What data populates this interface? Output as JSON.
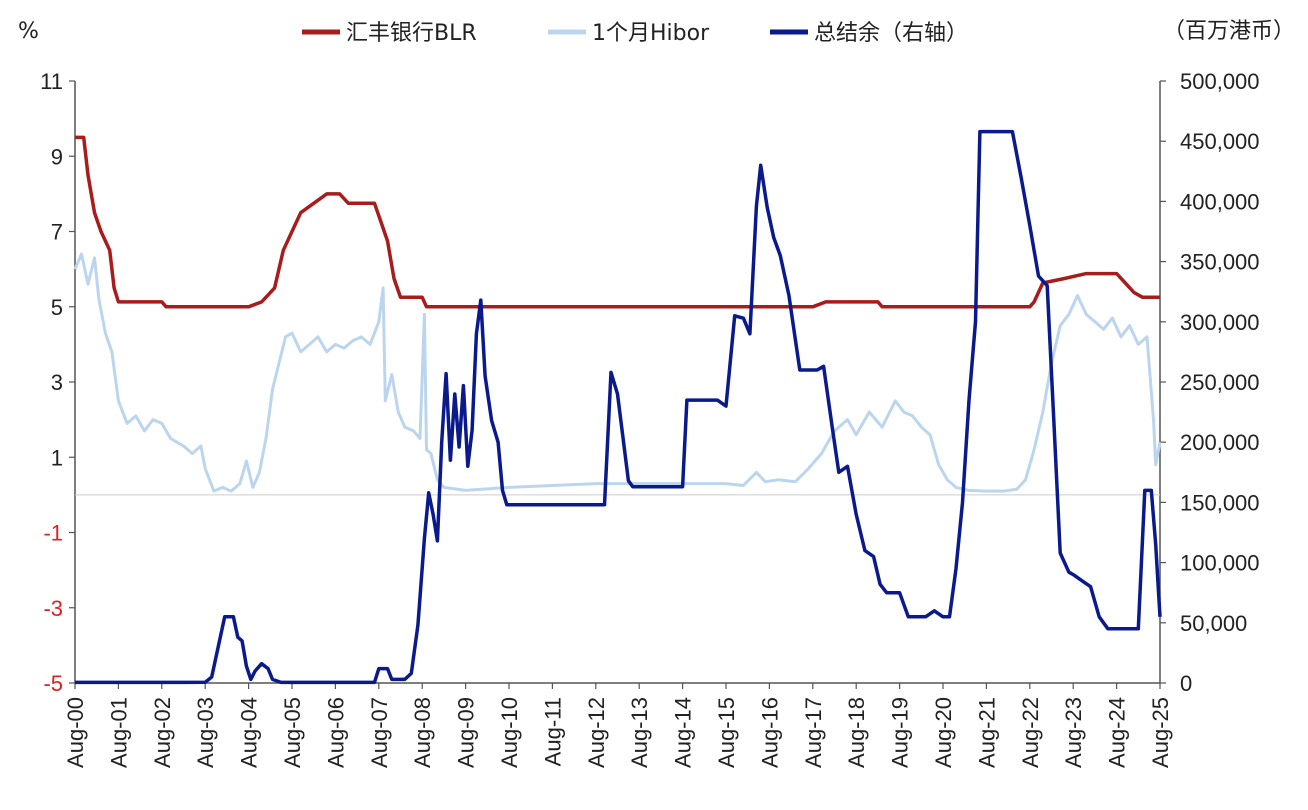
{
  "chart_data": {
    "type": "line",
    "left_unit": "%",
    "right_unit": "（百万港币）",
    "legend": [
      {
        "name": "汇丰银行BLR",
        "color": "#a81c1c"
      },
      {
        "name": "1个月Hibor",
        "color": "#bcd5ee"
      },
      {
        "name": "总结余（右轴）",
        "color": "#0a1a8c"
      }
    ],
    "x_ticks": [
      "Aug-00",
      "Aug-01",
      "Aug-02",
      "Aug-03",
      "Aug-04",
      "Aug-05",
      "Aug-06",
      "Aug-07",
      "Aug-08",
      "Aug-09",
      "Aug-10",
      "Aug-11",
      "Aug-12",
      "Aug-13",
      "Aug-14",
      "Aug-15",
      "Aug-16",
      "Aug-17",
      "Aug-18",
      "Aug-19",
      "Aug-20",
      "Aug-21",
      "Aug-22",
      "Aug-23",
      "Aug-24",
      "Aug-25"
    ],
    "y_left": {
      "ticks": [
        "11",
        "9",
        "7",
        "5",
        "3",
        "1",
        "-1",
        "-3",
        "-5"
      ],
      "values": [
        11,
        9,
        7,
        5,
        3,
        1,
        -1,
        -3,
        -5
      ],
      "min": -5,
      "max": 11,
      "negative_color": "#e02020"
    },
    "y_right": {
      "ticks": [
        "500,000",
        "450,000",
        "400,000",
        "350,000",
        "300,000",
        "250,000",
        "200,000",
        "150,000",
        "100,000",
        "50,000",
        "0"
      ],
      "values": [
        500000,
        450000,
        400000,
        350000,
        300000,
        250000,
        200000,
        150000,
        100000,
        50000,
        0
      ],
      "min": 0,
      "max": 500000
    },
    "series": [
      {
        "name": "汇丰银行BLR",
        "axis": "left",
        "color": "#a81c1c",
        "points": [
          [
            0,
            9.5
          ],
          [
            0.2,
            9.5
          ],
          [
            0.3,
            8.5
          ],
          [
            0.45,
            7.5
          ],
          [
            0.6,
            7.0
          ],
          [
            0.8,
            6.5
          ],
          [
            0.9,
            5.5
          ],
          [
            1.0,
            5.13
          ],
          [
            2.0,
            5.13
          ],
          [
            2.1,
            5.0
          ],
          [
            3.0,
            5.0
          ],
          [
            3.5,
            5.0
          ],
          [
            4.0,
            5.0
          ],
          [
            4.3,
            5.13
          ],
          [
            4.6,
            5.5
          ],
          [
            4.8,
            6.5
          ],
          [
            5.0,
            7.0
          ],
          [
            5.2,
            7.5
          ],
          [
            5.5,
            7.75
          ],
          [
            5.8,
            8.0
          ],
          [
            6.1,
            8.0
          ],
          [
            6.3,
            7.75
          ],
          [
            6.9,
            7.75
          ],
          [
            7.05,
            7.25
          ],
          [
            7.2,
            6.75
          ],
          [
            7.35,
            5.75
          ],
          [
            7.5,
            5.25
          ],
          [
            8.0,
            5.25
          ],
          [
            8.1,
            5.0
          ],
          [
            9.0,
            5.0
          ],
          [
            17.0,
            5.0
          ],
          [
            17.3,
            5.13
          ],
          [
            18.5,
            5.13
          ],
          [
            18.6,
            5.0
          ],
          [
            22.0,
            5.0
          ],
          [
            22.1,
            5.13
          ],
          [
            22.3,
            5.63
          ],
          [
            22.8,
            5.75
          ],
          [
            23.3,
            5.88
          ],
          [
            24.0,
            5.88
          ],
          [
            24.2,
            5.63
          ],
          [
            24.4,
            5.38
          ],
          [
            24.6,
            5.25
          ],
          [
            25.0,
            5.25
          ]
        ]
      },
      {
        "name": "1个月Hibor",
        "axis": "left",
        "color": "#bcd5ee",
        "points": [
          [
            0,
            6.0
          ],
          [
            0.15,
            6.4
          ],
          [
            0.3,
            5.6
          ],
          [
            0.45,
            6.3
          ],
          [
            0.55,
            5.2
          ],
          [
            0.7,
            4.3
          ],
          [
            0.85,
            3.8
          ],
          [
            1.0,
            2.5
          ],
          [
            1.2,
            1.9
          ],
          [
            1.4,
            2.1
          ],
          [
            1.6,
            1.7
          ],
          [
            1.8,
            2.0
          ],
          [
            2.0,
            1.9
          ],
          [
            2.2,
            1.5
          ],
          [
            2.5,
            1.3
          ],
          [
            2.7,
            1.1
          ],
          [
            2.9,
            1.3
          ],
          [
            3.0,
            0.7
          ],
          [
            3.2,
            0.1
          ],
          [
            3.4,
            0.2
          ],
          [
            3.6,
            0.1
          ],
          [
            3.8,
            0.3
          ],
          [
            3.95,
            0.9
          ],
          [
            4.1,
            0.2
          ],
          [
            4.25,
            0.6
          ],
          [
            4.4,
            1.5
          ],
          [
            4.55,
            2.8
          ],
          [
            4.7,
            3.5
          ],
          [
            4.85,
            4.2
          ],
          [
            5.0,
            4.3
          ],
          [
            5.2,
            3.8
          ],
          [
            5.4,
            4.0
          ],
          [
            5.6,
            4.2
          ],
          [
            5.8,
            3.8
          ],
          [
            6.0,
            4.0
          ],
          [
            6.2,
            3.9
          ],
          [
            6.4,
            4.1
          ],
          [
            6.6,
            4.2
          ],
          [
            6.8,
            4.0
          ],
          [
            7.0,
            4.6
          ],
          [
            7.1,
            5.5
          ],
          [
            7.15,
            2.5
          ],
          [
            7.3,
            3.2
          ],
          [
            7.45,
            2.2
          ],
          [
            7.6,
            1.8
          ],
          [
            7.8,
            1.7
          ],
          [
            7.95,
            1.5
          ],
          [
            8.05,
            4.8
          ],
          [
            8.1,
            1.2
          ],
          [
            8.2,
            1.1
          ],
          [
            8.35,
            0.4
          ],
          [
            8.5,
            0.2
          ],
          [
            9.0,
            0.12
          ],
          [
            10.0,
            0.2
          ],
          [
            11.0,
            0.25
          ],
          [
            12.0,
            0.3
          ],
          [
            13.0,
            0.3
          ],
          [
            14.0,
            0.3
          ],
          [
            15.0,
            0.3
          ],
          [
            15.4,
            0.25
          ],
          [
            15.7,
            0.6
          ],
          [
            15.9,
            0.35
          ],
          [
            16.2,
            0.4
          ],
          [
            16.6,
            0.35
          ],
          [
            16.9,
            0.7
          ],
          [
            17.2,
            1.1
          ],
          [
            17.5,
            1.7
          ],
          [
            17.8,
            2.0
          ],
          [
            18.0,
            1.6
          ],
          [
            18.3,
            2.2
          ],
          [
            18.6,
            1.8
          ],
          [
            18.9,
            2.5
          ],
          [
            19.1,
            2.2
          ],
          [
            19.3,
            2.1
          ],
          [
            19.5,
            1.8
          ],
          [
            19.7,
            1.6
          ],
          [
            19.9,
            0.8
          ],
          [
            20.1,
            0.4
          ],
          [
            20.3,
            0.2
          ],
          [
            20.6,
            0.12
          ],
          [
            21.0,
            0.1
          ],
          [
            21.4,
            0.1
          ],
          [
            21.7,
            0.15
          ],
          [
            21.9,
            0.4
          ],
          [
            22.1,
            1.2
          ],
          [
            22.3,
            2.2
          ],
          [
            22.5,
            3.5
          ],
          [
            22.7,
            4.5
          ],
          [
            22.9,
            4.8
          ],
          [
            23.1,
            5.3
          ],
          [
            23.3,
            4.8
          ],
          [
            23.5,
            4.6
          ],
          [
            23.7,
            4.4
          ],
          [
            23.9,
            4.7
          ],
          [
            24.1,
            4.2
          ],
          [
            24.3,
            4.5
          ],
          [
            24.5,
            4.0
          ],
          [
            24.7,
            4.2
          ],
          [
            24.85,
            2.0
          ],
          [
            24.9,
            0.8
          ],
          [
            25.0,
            1.4
          ]
        ]
      },
      {
        "name": "总结余（右轴）",
        "axis": "right",
        "color": "#0a1a8c",
        "points": [
          [
            0,
            500
          ],
          [
            2.5,
            500
          ],
          [
            3.0,
            600
          ],
          [
            3.15,
            5000
          ],
          [
            3.3,
            30000
          ],
          [
            3.45,
            55000
          ],
          [
            3.65,
            55000
          ],
          [
            3.75,
            38000
          ],
          [
            3.85,
            35000
          ],
          [
            3.95,
            14000
          ],
          [
            4.05,
            3000
          ],
          [
            4.15,
            10000
          ],
          [
            4.3,
            16000
          ],
          [
            4.45,
            12000
          ],
          [
            4.55,
            3000
          ],
          [
            4.75,
            500
          ],
          [
            6.9,
            500
          ],
          [
            7.0,
            12000
          ],
          [
            7.2,
            12000
          ],
          [
            7.3,
            3000
          ],
          [
            7.6,
            3000
          ],
          [
            7.75,
            8000
          ],
          [
            7.9,
            48000
          ],
          [
            8.05,
            120000
          ],
          [
            8.15,
            158000
          ],
          [
            8.25,
            140000
          ],
          [
            8.35,
            118000
          ],
          [
            8.45,
            200000
          ],
          [
            8.55,
            257000
          ],
          [
            8.65,
            185000
          ],
          [
            8.75,
            240000
          ],
          [
            8.85,
            196000
          ],
          [
            8.95,
            247000
          ],
          [
            9.05,
            180000
          ],
          [
            9.15,
            210000
          ],
          [
            9.25,
            290000
          ],
          [
            9.35,
            318000
          ],
          [
            9.45,
            255000
          ],
          [
            9.6,
            218000
          ],
          [
            9.75,
            200000
          ],
          [
            9.85,
            160000
          ],
          [
            9.95,
            148000
          ],
          [
            12.2,
            148000
          ],
          [
            12.35,
            258000
          ],
          [
            12.5,
            240000
          ],
          [
            12.75,
            168000
          ],
          [
            12.85,
            163000
          ],
          [
            14.0,
            163000
          ],
          [
            14.1,
            235000
          ],
          [
            14.8,
            235000
          ],
          [
            15.0,
            230000
          ],
          [
            15.2,
            305000
          ],
          [
            15.4,
            303000
          ],
          [
            15.55,
            290000
          ],
          [
            15.7,
            396000
          ],
          [
            15.8,
            430000
          ],
          [
            15.95,
            395000
          ],
          [
            16.1,
            370000
          ],
          [
            16.25,
            355000
          ],
          [
            16.45,
            322000
          ],
          [
            16.6,
            285000
          ],
          [
            16.7,
            260000
          ],
          [
            17.1,
            260000
          ],
          [
            17.25,
            263000
          ],
          [
            17.45,
            212000
          ],
          [
            17.6,
            175000
          ],
          [
            17.8,
            180000
          ],
          [
            18.0,
            140000
          ],
          [
            18.2,
            110000
          ],
          [
            18.4,
            105000
          ],
          [
            18.55,
            82000
          ],
          [
            18.7,
            75000
          ],
          [
            19.0,
            75000
          ],
          [
            19.2,
            55000
          ],
          [
            19.6,
            55000
          ],
          [
            19.8,
            60000
          ],
          [
            20.0,
            55000
          ],
          [
            20.15,
            55000
          ],
          [
            20.3,
            95000
          ],
          [
            20.45,
            150000
          ],
          [
            20.6,
            235000
          ],
          [
            20.75,
            300000
          ],
          [
            20.85,
            458000
          ],
          [
            21.15,
            458000
          ],
          [
            21.6,
            458000
          ],
          [
            21.8,
            420000
          ],
          [
            22.0,
            380000
          ],
          [
            22.2,
            338000
          ],
          [
            22.4,
            330000
          ],
          [
            22.55,
            220000
          ],
          [
            22.7,
            108000
          ],
          [
            22.9,
            92000
          ],
          [
            23.0,
            90000
          ],
          [
            23.2,
            85000
          ],
          [
            23.4,
            80000
          ],
          [
            23.6,
            55000
          ],
          [
            23.8,
            45000
          ],
          [
            24.4,
            45000
          ],
          [
            24.5,
            45000
          ],
          [
            24.65,
            160000
          ],
          [
            24.8,
            160000
          ],
          [
            24.9,
            115000
          ],
          [
            25.0,
            55000
          ]
        ]
      }
    ],
    "baseline_hibor_zero": 0,
    "grid": false,
    "legend_position": "top"
  }
}
